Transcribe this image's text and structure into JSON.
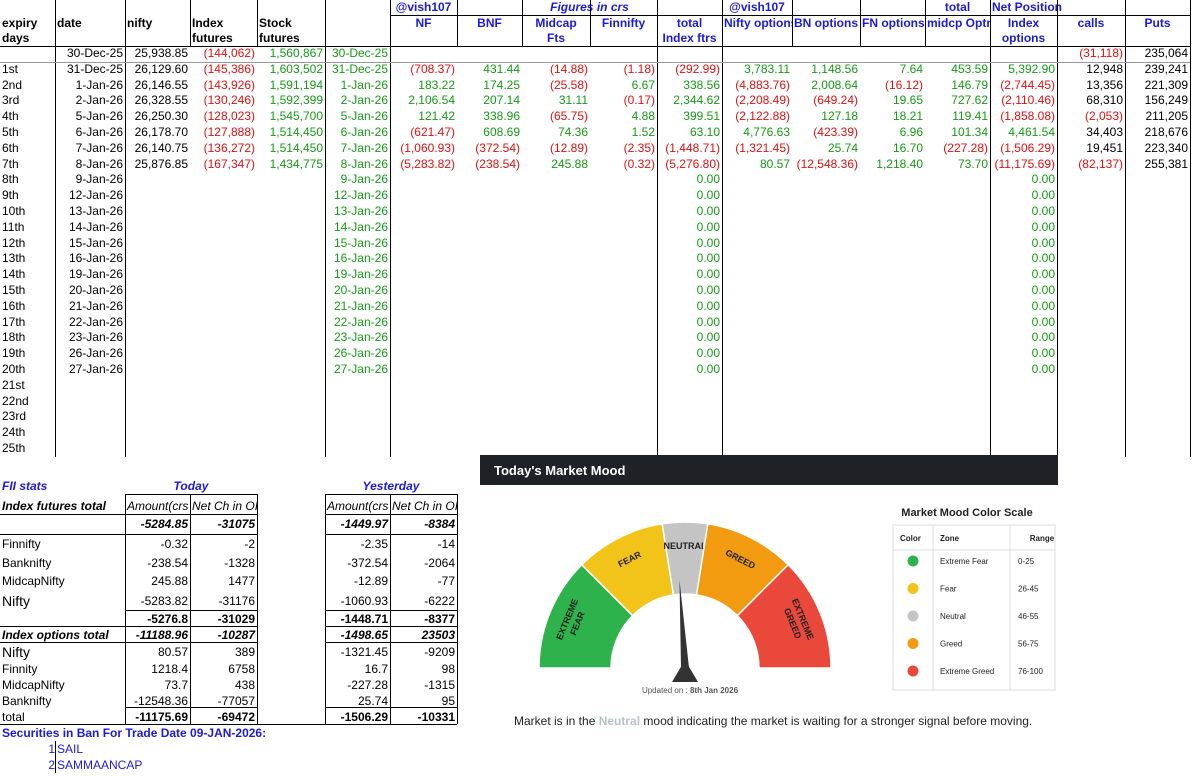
{
  "header": {
    "row1": [
      null,
      null,
      null,
      null,
      null,
      null,
      "@vish107",
      null,
      "Figures in crs",
      null,
      null,
      "@vish107",
      null,
      null,
      "total",
      "Net Position",
      null,
      null
    ],
    "row2": [
      "expiry",
      "date",
      "nifty",
      "Index",
      "Stock",
      null,
      "NF",
      "BNF",
      "Midcap",
      "Finnifty",
      "total",
      "Nifty options",
      "BN options",
      "FN options",
      "midcp Optns",
      "Index",
      "calls",
      "Puts"
    ],
    "row3": [
      "days",
      null,
      null,
      "futures",
      "futures",
      null,
      null,
      null,
      "Fts",
      null,
      "Index ftrs",
      null,
      null,
      null,
      null,
      "options",
      null,
      null
    ]
  },
  "rows": [
    [
      null,
      "30-Dec-25",
      "25,938.85",
      "(144,062)",
      "1,560,867",
      "30-Dec-25",
      null,
      null,
      null,
      null,
      null,
      null,
      null,
      null,
      null,
      null,
      "(31,118)",
      "235,064"
    ],
    [
      "1st",
      "31-Dec-25",
      "26,129.60",
      "(145,386)",
      "1,603,502",
      "31-Dec-25",
      "(708.37)",
      "431.44",
      "(14.88)",
      "(1.18)",
      "(292.99)",
      "3,783.11",
      "1,148.56",
      "7.64",
      "453.59",
      "5,392.90",
      "12,948",
      "239,241"
    ],
    [
      "2nd",
      "1-Jan-26",
      "26,146.55",
      "(143,926)",
      "1,591,194",
      "1-Jan-26",
      "183.22",
      "174.25",
      "(25.58)",
      "6.67",
      "338.56",
      "(4,883.76)",
      "2,008.64",
      "(16.12)",
      "146.79",
      "(2,744.45)",
      "13,356",
      "221,309"
    ],
    [
      "3rd",
      "2-Jan-26",
      "26,328.55",
      "(130,246)",
      "1,592,399",
      "2-Jan-26",
      "2,106.54",
      "207.14",
      "31.11",
      "(0.17)",
      "2,344.62",
      "(2,208.49)",
      "(649.24)",
      "19.65",
      "727.62",
      "(2,110.46)",
      "68,310",
      "156,249"
    ],
    [
      "4th",
      "5-Jan-26",
      "26,250.30",
      "(128,023)",
      "1,545,700",
      "5-Jan-26",
      "121.42",
      "338.96",
      "(65.75)",
      "4.88",
      "399.51",
      "(2,122.88)",
      "127.18",
      "18.21",
      "119.41",
      "(1,858.08)",
      "(2,053)",
      "211,205"
    ],
    [
      "5th",
      "6-Jan-26",
      "26,178.70",
      "(127,888)",
      "1,514,450",
      "6-Jan-26",
      "(621.47)",
      "608.69",
      "74.36",
      "1.52",
      "63.10",
      "4,776.63",
      "(423.39)",
      "6.96",
      "101.34",
      "4,461.54",
      "34,403",
      "218,676"
    ],
    [
      "6th",
      "7-Jan-26",
      "26,140.75",
      "(136,272)",
      "1,514,450",
      "7-Jan-26",
      "(1,060.93)",
      "(372.54)",
      "(12.89)",
      "(2.35)",
      "(1,448.71)",
      "(1,321.45)",
      "25.74",
      "16.70",
      "(227.28)",
      "(1,506.29)",
      "19,451",
      "223,340"
    ],
    [
      "7th",
      "8-Jan-26",
      "25,876.85",
      "(167,347)",
      "1,434,775",
      "8-Jan-26",
      "(5,283.82)",
      "(238.54)",
      "245.88",
      "(0.32)",
      "(5,276.80)",
      "80.57",
      "(12,548.36)",
      "1,218.40",
      "73.70",
      "(11,175.69)",
      "(82,137)",
      "255,381"
    ],
    [
      "8th",
      "9-Jan-26",
      null,
      null,
      null,
      "9-Jan-26",
      null,
      null,
      null,
      null,
      "0.00",
      null,
      null,
      null,
      null,
      "0.00",
      null,
      null
    ],
    [
      "9th",
      "12-Jan-26",
      null,
      null,
      null,
      "12-Jan-26",
      null,
      null,
      null,
      null,
      "0.00",
      null,
      null,
      null,
      null,
      "0.00",
      null,
      null
    ],
    [
      "10th",
      "13-Jan-26",
      null,
      null,
      null,
      "13-Jan-26",
      null,
      null,
      null,
      null,
      "0.00",
      null,
      null,
      null,
      null,
      "0.00",
      null,
      null
    ],
    [
      "11th",
      "14-Jan-26",
      null,
      null,
      null,
      "14-Jan-26",
      null,
      null,
      null,
      null,
      "0.00",
      null,
      null,
      null,
      null,
      "0.00",
      null,
      null
    ],
    [
      "12th",
      "15-Jan-26",
      null,
      null,
      null,
      "15-Jan-26",
      null,
      null,
      null,
      null,
      "0.00",
      null,
      null,
      null,
      null,
      "0.00",
      null,
      null
    ],
    [
      "13th",
      "16-Jan-26",
      null,
      null,
      null,
      "16-Jan-26",
      null,
      null,
      null,
      null,
      "0.00",
      null,
      null,
      null,
      null,
      "0.00",
      null,
      null
    ],
    [
      "14th",
      "19-Jan-26",
      null,
      null,
      null,
      "19-Jan-26",
      null,
      null,
      null,
      null,
      "0.00",
      null,
      null,
      null,
      null,
      "0.00",
      null,
      null
    ],
    [
      "15th",
      "20-Jan-26",
      null,
      null,
      null,
      "20-Jan-26",
      null,
      null,
      null,
      null,
      "0.00",
      null,
      null,
      null,
      null,
      "0.00",
      null,
      null
    ],
    [
      "16th",
      "21-Jan-26",
      null,
      null,
      null,
      "21-Jan-26",
      null,
      null,
      null,
      null,
      "0.00",
      null,
      null,
      null,
      null,
      "0.00",
      null,
      null
    ],
    [
      "17th",
      "22-Jan-26",
      null,
      null,
      null,
      "22-Jan-26",
      null,
      null,
      null,
      null,
      "0.00",
      null,
      null,
      null,
      null,
      "0.00",
      null,
      null
    ],
    [
      "18th",
      "23-Jan-26",
      null,
      null,
      null,
      "23-Jan-26",
      null,
      null,
      null,
      null,
      "0.00",
      null,
      null,
      null,
      null,
      "0.00",
      null,
      null
    ],
    [
      "19th",
      "26-Jan-26",
      null,
      null,
      null,
      "26-Jan-26",
      null,
      null,
      null,
      null,
      "0.00",
      null,
      null,
      null,
      null,
      "0.00",
      null,
      null
    ],
    [
      "20th",
      "27-Jan-26",
      null,
      null,
      null,
      "27-Jan-26",
      null,
      null,
      null,
      null,
      "0.00",
      null,
      null,
      null,
      null,
      "0.00",
      null,
      null
    ],
    [
      "21st",
      null,
      null,
      null,
      null,
      null,
      null,
      null,
      null,
      null,
      null,
      null,
      null,
      null,
      null,
      null,
      null,
      null
    ],
    [
      "22nd",
      null,
      null,
      null,
      null,
      null,
      null,
      null,
      null,
      null,
      null,
      null,
      null,
      null,
      null,
      null,
      null,
      null
    ],
    [
      "23rd",
      null,
      null,
      null,
      null,
      null,
      null,
      null,
      null,
      null,
      null,
      null,
      null,
      null,
      null,
      null,
      null,
      null
    ],
    [
      "24th",
      null,
      null,
      null,
      null,
      null,
      null,
      null,
      null,
      null,
      null,
      null,
      null,
      null,
      null,
      null,
      null,
      null
    ],
    [
      "25th",
      null,
      null,
      null,
      null,
      null,
      null,
      null,
      null,
      null,
      null,
      null,
      null,
      null,
      null,
      null,
      null,
      null
    ]
  ],
  "fii": {
    "title": "FII stats",
    "today": "Today",
    "yesterday": "Yesterday",
    "header": [
      "Index futures total",
      "Amount(crs",
      "Net Ch in OI",
      "Amount(crs",
      "Net Ch in OI"
    ],
    "rows": [
      [
        null,
        "-5284.85",
        "-31075",
        "-1449.97",
        "-8384"
      ],
      [
        "Finnifty",
        "-0.32",
        "-2",
        "-2.35",
        "-14"
      ],
      [
        "Banknifty",
        "-238.54",
        "-1328",
        "-372.54",
        "-2064"
      ],
      [
        "MidcapNifty",
        "245.88",
        "1477",
        "-12.89",
        "-77"
      ],
      [
        "Nifty",
        "-5283.82",
        "-31176",
        "-1060.93",
        "-6222"
      ],
      [
        null,
        "-5276.8",
        "-31029",
        "-1448.71",
        "-8377"
      ],
      [
        "Index options total",
        "-11188.96",
        "-10287",
        "-1498.65",
        "23503"
      ],
      [
        "Nifty",
        "80.57",
        "389",
        "-1321.45",
        "-9209"
      ],
      [
        "Finnity",
        "1218.4",
        "6758",
        "16.7",
        "98"
      ],
      [
        "MidcapNifty",
        "73.7",
        "438",
        "-227.28",
        "-1315"
      ],
      [
        "Banknifty",
        "-12548.36",
        "-77057",
        "25.74",
        "95"
      ],
      [
        "total",
        "-11175.69",
        "-69472",
        "-1506.29",
        "-10331"
      ]
    ]
  },
  "ban": {
    "title": "Securities in Ban For Trade Date 09-JAN-2026:",
    "items": [
      [
        "1",
        "SAIL"
      ],
      [
        "2",
        "SAMMAANCAP"
      ]
    ]
  },
  "mood": {
    "title": "Today's Market Mood",
    "gauge": {
      "min": 0,
      "max": 100,
      "needle": 48,
      "labels": [
        [
          "EXTREME",
          "FEAR"
        ],
        [
          "FEAR"
        ],
        [
          "NEUTRAL"
        ],
        [
          "GREED"
        ],
        [
          "EXTREME",
          "GREED"
        ]
      ]
    },
    "updated_prefix": "Updated on :",
    "updated_date": "8th Jan 2026",
    "scale": {
      "title": "Market Mood Color Scale",
      "header": [
        "Color",
        "Zone",
        "Range"
      ],
      "rows": [
        {
          "color": "#2eb24c",
          "zone": "Extreme Fear",
          "range": "0-25"
        },
        {
          "color": "#f2c318",
          "zone": "Fear",
          "range": "26-45"
        },
        {
          "color": "#c4c4c4",
          "zone": "Neutral",
          "range": "46-55"
        },
        {
          "color": "#f29b11",
          "zone": "Greed",
          "range": "56-75"
        },
        {
          "color": "#e9483b",
          "zone": "Extreme Greed",
          "range": "76-100"
        }
      ]
    },
    "footer": [
      "Market is in the",
      "Neutral",
      "mood indicating the market is waiting for a stronger signal before moving."
    ]
  }
}
